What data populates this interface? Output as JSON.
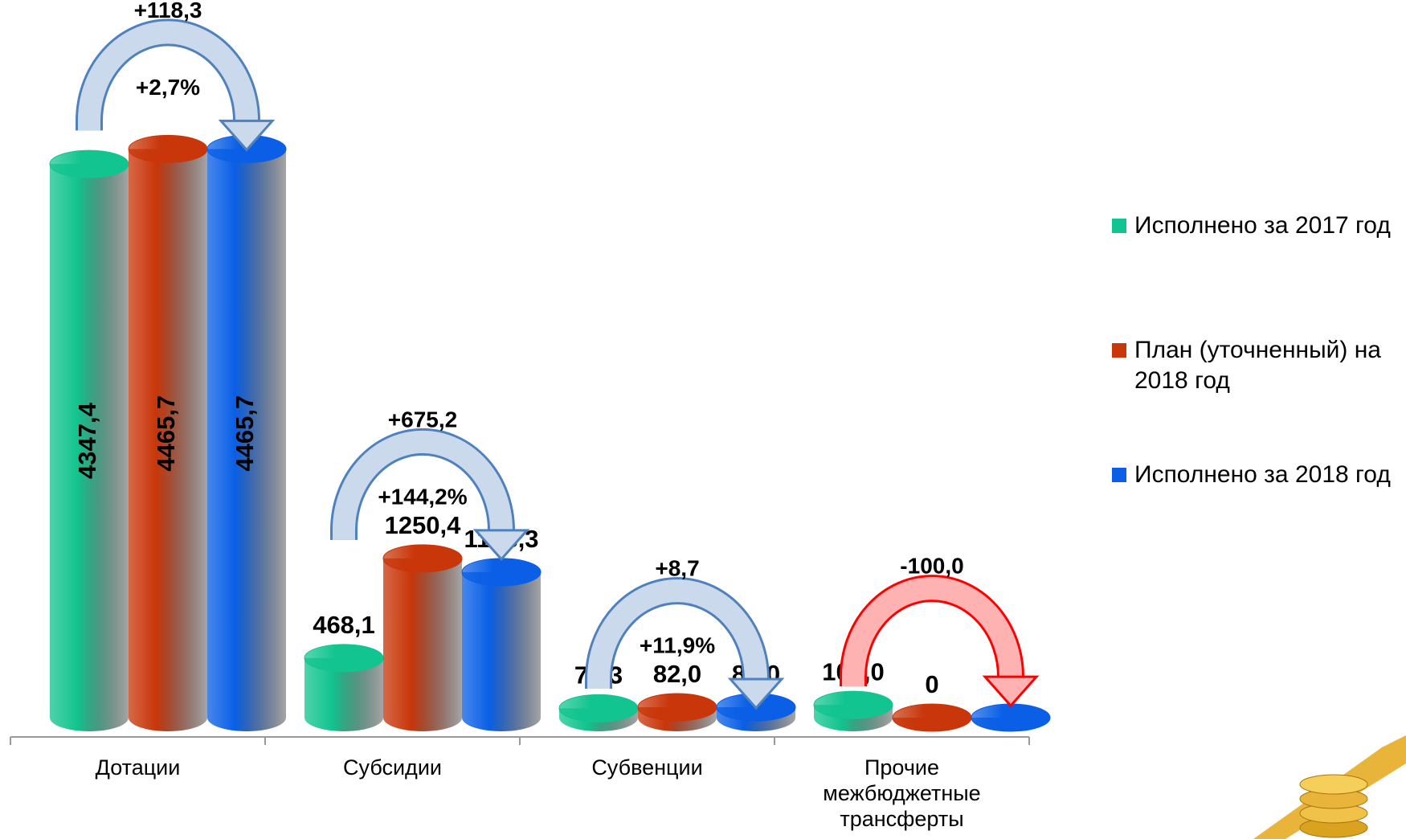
{
  "chart_data": {
    "type": "bar",
    "style": "cylinder",
    "categories": [
      "Дотации",
      "Субсидии",
      "Субвенции",
      "Прочие межбюджетные трансферты"
    ],
    "series": [
      {
        "name": "Исполнено за 2017 год",
        "color": "#12c48f",
        "values": [
          4347.4,
          468.1,
          73.3,
          100.0
        ],
        "value_labels": [
          "4347,4",
          "468,1",
          "73,3",
          "100,0"
        ]
      },
      {
        "name": "План (уточненный) на 2018 год",
        "color": "#c8360a",
        "values": [
          4465.7,
          1250.4,
          82.0,
          0
        ],
        "value_labels": [
          "4465,7",
          "1250,4",
          "82,0",
          "0"
        ]
      },
      {
        "name": "Исполнено за 2018 год",
        "color": "#0a5fe6",
        "values": [
          4465.7,
          1143.3,
          82.0,
          0
        ],
        "value_labels": [
          "4465,7",
          "1143,3",
          "82,0",
          "0"
        ]
      }
    ],
    "ylim": [
      0,
      4500
    ],
    "annotations": [
      {
        "delta": "+118,3",
        "percent": "+2,7%",
        "color": "#4f81bd"
      },
      {
        "delta": "+675,2",
        "percent": "+144,2%",
        "color": "#4f81bd"
      },
      {
        "delta": "+8,7",
        "percent": "+11,9%",
        "color": "#4f81bd"
      },
      {
        "delta": "-100,0",
        "color": "#ff0000"
      }
    ],
    "legend": "right"
  }
}
